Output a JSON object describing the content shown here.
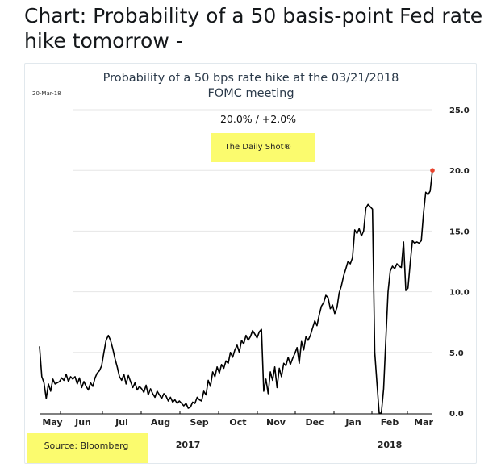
{
  "tweet": {
    "text": "Chart: Probability of a 50 basis-point Fed rate hike tomorrow -"
  },
  "colors": {
    "line": "#000000",
    "last_point": "#e8422c",
    "highlight": "#fbfb6e",
    "grid": "#e6e6e6"
  },
  "chart_data": {
    "type": "line",
    "title": "Probability of a 50 bps rate hike at the 03/21/2018",
    "title_line2": "FOMC meeting",
    "date_stamp": "20-Mar-18",
    "annotation": "20.0%  /  +2.0%",
    "brand": "The Daily Shot®",
    "source": "Source: Bloomberg",
    "ylim": [
      0,
      25
    ],
    "yticks": [
      "25.0",
      "20.0",
      "15.0",
      "10.0",
      "5.0",
      "0.0"
    ],
    "grid": true,
    "y_axis_position": "right",
    "xticks": [
      "May",
      "Jun",
      "Jul",
      "Aug",
      "Sep",
      "Oct",
      "Nov",
      "Dec",
      "Jan",
      "Feb",
      "Mar"
    ],
    "years": [
      "2017",
      "2018"
    ],
    "series": [
      {
        "values": [
          5.5,
          3.0,
          2.5,
          1.2,
          2.4,
          1.8,
          2.8,
          2.4,
          2.5,
          2.6,
          2.9,
          2.7,
          3.2,
          2.6,
          3.0,
          2.8,
          3.0,
          2.4,
          2.9,
          2.1,
          2.6,
          2.2,
          1.9,
          2.5,
          2.2,
          2.9,
          3.3,
          3.5,
          3.9,
          5.0,
          6.0,
          6.4,
          6.0,
          5.3,
          4.5,
          3.8,
          3.0,
          2.7,
          3.2,
          2.4,
          3.1,
          2.6,
          2.1,
          2.5,
          1.9,
          2.2,
          2.0,
          1.7,
          2.3,
          1.5,
          2.0,
          1.6,
          1.3,
          1.8,
          1.5,
          1.2,
          1.6,
          1.4,
          1.0,
          1.3,
          0.9,
          1.1,
          0.8,
          1.0,
          0.8,
          0.6,
          0.8,
          0.4,
          0.5,
          0.9,
          0.8,
          1.3,
          1.1,
          1.0,
          1.8,
          1.5,
          2.7,
          2.2,
          3.4,
          3.0,
          3.8,
          3.3,
          4.0,
          3.7,
          4.3,
          4.1,
          5.0,
          4.6,
          5.2,
          5.6,
          5.0,
          6.0,
          5.7,
          6.4,
          6.0,
          6.3,
          6.8,
          6.5,
          6.2,
          6.7,
          6.9,
          1.8,
          2.8,
          1.6,
          3.4,
          2.7,
          3.8,
          2.1,
          3.7,
          3.0,
          4.1,
          3.9,
          4.6,
          4.0,
          4.5,
          4.9,
          5.4,
          4.1,
          5.9,
          5.2,
          6.3,
          6.0,
          6.4,
          7.0,
          7.6,
          7.2,
          8.1,
          8.8,
          9.1,
          9.7,
          9.5,
          8.6,
          8.9,
          8.2,
          8.7,
          9.9,
          10.5,
          11.3,
          11.9,
          12.5,
          12.3,
          12.8,
          15.1,
          14.8,
          15.2,
          14.6,
          15.0,
          16.9,
          17.2,
          17.0,
          16.8,
          5.0,
          2.5,
          0.0,
          0.0,
          2.0,
          6.0,
          10.0,
          11.7,
          12.1,
          11.9,
          12.3,
          12.1,
          12.0,
          14.1,
          10.1,
          10.3,
          12.4,
          14.2,
          14.0,
          14.1,
          14.0,
          14.2,
          16.5,
          18.2,
          18.0,
          18.3,
          20.0
        ],
        "last_value": 20.0,
        "last_marker": true
      }
    ]
  }
}
